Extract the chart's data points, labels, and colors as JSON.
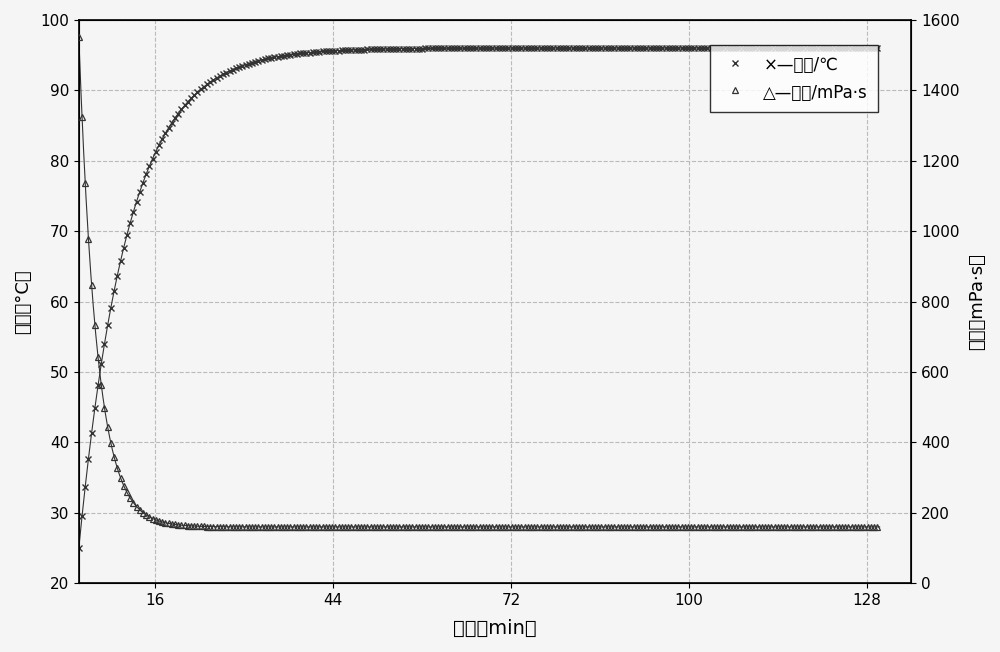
{
  "xlabel": "时间（min）",
  "ylabel_left": "温度（°C）",
  "ylabel_right": "粘度（mPa·s）",
  "xlim": [
    4,
    135
  ],
  "ylim_left": [
    20,
    100
  ],
  "ylim_right": [
    0,
    1600
  ],
  "xticks": [
    16,
    44,
    72,
    100,
    128
  ],
  "yticks_left": [
    20,
    30,
    40,
    50,
    60,
    70,
    80,
    90,
    100
  ],
  "yticks_right": [
    0,
    200,
    400,
    600,
    800,
    1000,
    1200,
    1400,
    1600
  ],
  "legend_temp": "×—温度/℃",
  "legend_visc": "△—粘度/mPa·s",
  "grid_color": "#bbbbbb",
  "line_color": "#333333",
  "background_color": "#f5f5f5",
  "fig_width": 10.0,
  "fig_height": 6.52,
  "temp_end": 96.0,
  "temp_start": 25.0,
  "visc_floor": 160.0,
  "visc_amp": 1390.0
}
